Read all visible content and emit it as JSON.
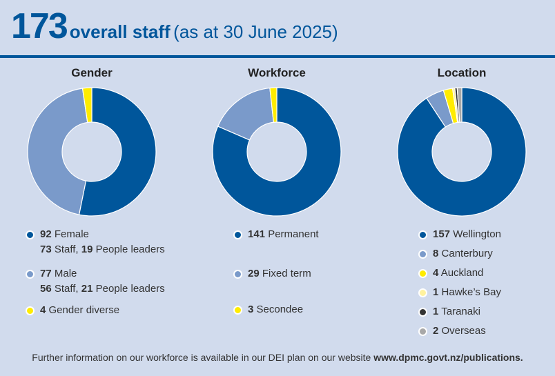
{
  "header": {
    "total": "173",
    "label": "overall staff",
    "subtitle": "(as at 30 June 2025)"
  },
  "chart_data": [
    {
      "type": "donut",
      "title": "Gender",
      "categories": [
        "Female",
        "Male",
        "Gender diverse"
      ],
      "values": [
        92,
        77,
        4
      ],
      "colors": [
        "#00569b",
        "#7a9aca",
        "#ffec00"
      ],
      "details": [
        {
          "a": "73",
          "a_label": " Staff, ",
          "b": "19",
          "b_label": " People leaders"
        },
        {
          "a": "56",
          "a_label": " Staff, ",
          "b": "21",
          "b_label": " People leaders"
        },
        null
      ]
    },
    {
      "type": "donut",
      "title": "Workforce",
      "categories": [
        "Permanent",
        "Fixed term",
        "Secondee"
      ],
      "values": [
        141,
        29,
        3
      ],
      "colors": [
        "#00569b",
        "#7a9aca",
        "#ffec00"
      ]
    },
    {
      "type": "donut",
      "title": "Location",
      "categories": [
        "Wellington",
        "Canterbury",
        "Auckland",
        "Hawke’s Bay",
        "Taranaki",
        "Overseas"
      ],
      "values": [
        157,
        8,
        4,
        1,
        1,
        2
      ],
      "colors": [
        "#00569b",
        "#7a9aca",
        "#ffec00",
        "#fff29e",
        "#333333",
        "#a8a8a8"
      ]
    }
  ],
  "footer": {
    "text": "Further information on our workforce is available in our DEI plan on our website ",
    "link": "www.dpmc.govt.nz/publications."
  }
}
